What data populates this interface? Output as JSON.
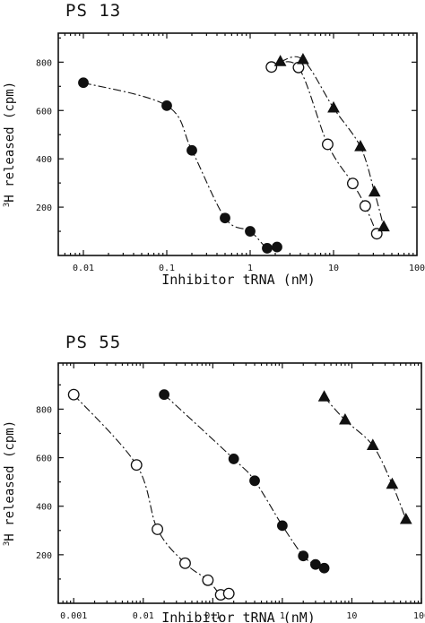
{
  "chart_data": [
    {
      "type": "scatter",
      "title": "PS 13",
      "xlabel": "Inhibitor tRNA (nM)",
      "ylabel_superscript": "3",
      "ylabel": "H released (cpm)",
      "xscale": "log",
      "xlim": [
        0.005,
        100
      ],
      "ylim": [
        0,
        920
      ],
      "xtick_labels": [
        "0.01",
        "0.1",
        "1",
        "10",
        "100"
      ],
      "xticks": [
        0.01,
        0.1,
        1,
        10,
        100
      ],
      "ytick_labels": [
        "200",
        "400",
        "600",
        "800"
      ],
      "yticks": [
        200,
        400,
        600,
        800
      ],
      "grid": false,
      "series": [
        {
          "marker": "filled-circle",
          "line": "dash-dot",
          "x": [
            0.01,
            0.1,
            0.2,
            0.5,
            1.0,
            1.6,
            2.1
          ],
          "y": [
            715,
            620,
            435,
            155,
            100,
            30,
            35
          ]
        },
        {
          "marker": "open-circle",
          "line": "dash-dot",
          "x": [
            1.8,
            3.8,
            8.5,
            17,
            24,
            33
          ],
          "y": [
            780,
            778,
            460,
            298,
            205,
            90
          ]
        },
        {
          "marker": "filled-triangle",
          "line": "dash-dot",
          "x": [
            2.3,
            4.3,
            10,
            21,
            31,
            40
          ],
          "y": [
            802,
            810,
            610,
            450,
            262,
            118
          ]
        }
      ]
    },
    {
      "type": "scatter",
      "title": "PS 55",
      "xlabel": "Inhibitor tRNA (nM)",
      "ylabel_superscript": "3",
      "ylabel": "H released (cpm)",
      "xscale": "log",
      "xlim": [
        0.0006,
        100
      ],
      "ylim": [
        0,
        990
      ],
      "xtick_labels": [
        "0.001",
        "0.01",
        "0.1",
        "1",
        "10",
        "100"
      ],
      "xticks": [
        0.001,
        0.01,
        0.1,
        1,
        10,
        100
      ],
      "ytick_labels": [
        "200",
        "400",
        "600",
        "800"
      ],
      "yticks": [
        200,
        400,
        600,
        800
      ],
      "grid": false,
      "series": [
        {
          "marker": "open-circle",
          "line": "dash-dot",
          "x": [
            0.001,
            0.008,
            0.016,
            0.04,
            0.085,
            0.13,
            0.17
          ],
          "y": [
            860,
            570,
            305,
            165,
            95,
            35,
            40
          ]
        },
        {
          "marker": "filled-circle",
          "line": "dash-dot",
          "x": [
            0.02,
            0.2,
            0.4,
            1.0,
            2.0,
            3.0,
            4.0
          ],
          "y": [
            860,
            595,
            505,
            320,
            195,
            160,
            145
          ]
        },
        {
          "marker": "filled-triangle",
          "line": "dash-dot",
          "x": [
            4.0,
            8.0,
            20,
            38,
            60
          ],
          "y": [
            850,
            755,
            650,
            490,
            345
          ]
        }
      ]
    }
  ]
}
